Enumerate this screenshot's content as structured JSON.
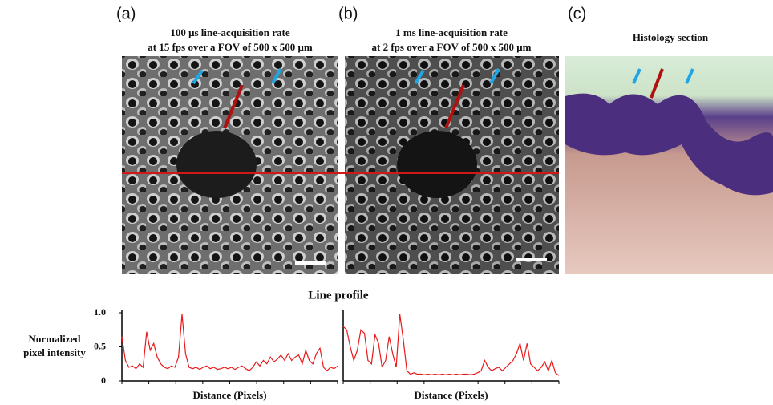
{
  "panels": [
    {
      "label": "(a)",
      "title_lines": [
        "100 μs line-acquisition rate",
        "at 15 fps over a FOV of 500 x 500 μm"
      ]
    },
    {
      "label": "(b)",
      "title_lines": [
        "1 ms line-acquisition rate",
        "at 2 fps over a FOV of 500 x 500 μm"
      ]
    },
    {
      "label": "(c)",
      "title_lines": [
        "Histology section"
      ]
    }
  ],
  "profile_title": "Line profile",
  "y_axis_label": [
    "Normalized",
    "pixel intensity"
  ],
  "chart_data": [
    {
      "type": "line",
      "xlabel": "Distance (Pixels)",
      "color": "#e8191b",
      "ylim": [
        0,
        1
      ],
      "yticks": [
        0,
        0.5,
        {
          "value": 1,
          "label": "1.0"
        }
      ],
      "values": [
        0.65,
        0.3,
        0.2,
        0.22,
        0.18,
        0.25,
        0.2,
        0.72,
        0.45,
        0.55,
        0.35,
        0.25,
        0.2,
        0.18,
        0.22,
        0.2,
        0.35,
        0.98,
        0.4,
        0.2,
        0.18,
        0.2,
        0.17,
        0.2,
        0.22,
        0.18,
        0.2,
        0.17,
        0.18,
        0.2,
        0.18,
        0.2,
        0.17,
        0.2,
        0.22,
        0.18,
        0.15,
        0.2,
        0.28,
        0.22,
        0.3,
        0.25,
        0.35,
        0.28,
        0.32,
        0.38,
        0.3,
        0.4,
        0.3,
        0.35,
        0.38,
        0.25,
        0.45,
        0.3,
        0.25,
        0.4,
        0.48,
        0.2,
        0.15,
        0.2,
        0.18,
        0.22
      ]
    },
    {
      "type": "line",
      "xlabel": "Distance (Pixels)",
      "color": "#e8191b",
      "ylim": [
        0,
        1
      ],
      "values": [
        0.8,
        0.75,
        0.5,
        0.3,
        0.45,
        0.75,
        0.7,
        0.3,
        0.25,
        0.68,
        0.55,
        0.2,
        0.3,
        0.65,
        0.4,
        0.2,
        0.98,
        0.6,
        0.15,
        0.1,
        0.12,
        0.1,
        0.1,
        0.09,
        0.1,
        0.09,
        0.1,
        0.09,
        0.1,
        0.09,
        0.1,
        0.09,
        0.1,
        0.09,
        0.1,
        0.1,
        0.09,
        0.1,
        0.12,
        0.15,
        0.3,
        0.2,
        0.15,
        0.18,
        0.2,
        0.15,
        0.2,
        0.25,
        0.3,
        0.4,
        0.55,
        0.3,
        0.55,
        0.25,
        0.2,
        0.15,
        0.2,
        0.28,
        0.15,
        0.3,
        0.12,
        0.08
      ]
    }
  ]
}
